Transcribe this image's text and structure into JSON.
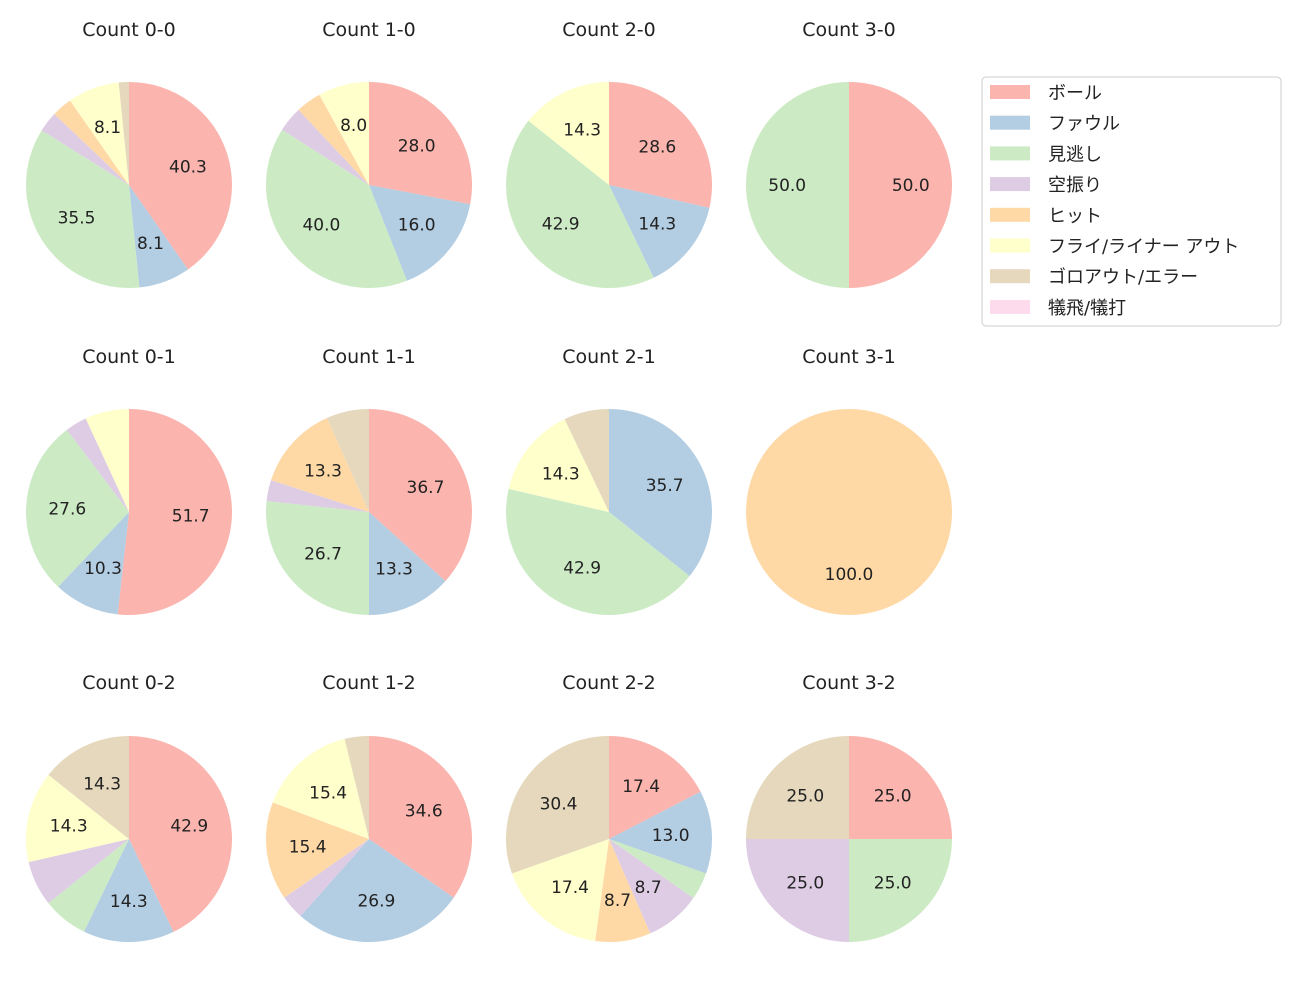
{
  "chart_data": {
    "type": "pie",
    "start_angle": "top, clockwise",
    "legend": {
      "placement": "top-right",
      "entries": [
        "ボール",
        "ファウル",
        "見逃し",
        "空振り",
        "ヒット",
        "フライ/ライナー アウト",
        "ゴロアウト/エラー",
        "犠飛/犠打"
      ]
    },
    "colors": [
      "#fbb4ae",
      "#b3cde3",
      "#ccebc5",
      "#decbe4",
      "#fed9a6",
      "#ffffcc",
      "#e5d8bd",
      "#fddaec"
    ],
    "charts": [
      {
        "title": "Count 0-0",
        "values": [
          40.3,
          8.1,
          35.5,
          3.2,
          3.2,
          8.1,
          1.6,
          0
        ]
      },
      {
        "title": "Count 1-0",
        "values": [
          28.0,
          16.0,
          40.0,
          4.0,
          4.0,
          8.0,
          0,
          0
        ]
      },
      {
        "title": "Count 2-0",
        "values": [
          28.6,
          14.3,
          42.9,
          0,
          0,
          14.3,
          0,
          0
        ]
      },
      {
        "title": "Count 3-0",
        "values": [
          50.0,
          0,
          50.0,
          0,
          0,
          0,
          0,
          0
        ]
      },
      {
        "title": "Count 0-1",
        "values": [
          51.7,
          10.3,
          27.6,
          3.4,
          0,
          6.9,
          0,
          0
        ]
      },
      {
        "title": "Count 1-1",
        "values": [
          36.7,
          13.3,
          26.7,
          3.3,
          13.3,
          0,
          6.7,
          0
        ]
      },
      {
        "title": "Count 2-1",
        "values": [
          0,
          35.7,
          42.9,
          0,
          0,
          14.3,
          7.1,
          0
        ]
      },
      {
        "title": "Count 3-1",
        "values": [
          0,
          0,
          0,
          0,
          100.0,
          0,
          0,
          0
        ]
      },
      {
        "title": "Count 0-2",
        "values": [
          42.9,
          14.3,
          7.1,
          7.1,
          0,
          14.3,
          14.3,
          0
        ]
      },
      {
        "title": "Count 1-2",
        "values": [
          34.6,
          26.9,
          0,
          3.8,
          15.4,
          15.4,
          3.8,
          0
        ]
      },
      {
        "title": "Count 2-2",
        "values": [
          17.4,
          13.0,
          4.3,
          8.7,
          8.7,
          17.4,
          30.4,
          0
        ]
      },
      {
        "title": "Count 3-2",
        "values": [
          25.0,
          0,
          25.0,
          25.0,
          0,
          0,
          25.0,
          0
        ]
      }
    ]
  }
}
